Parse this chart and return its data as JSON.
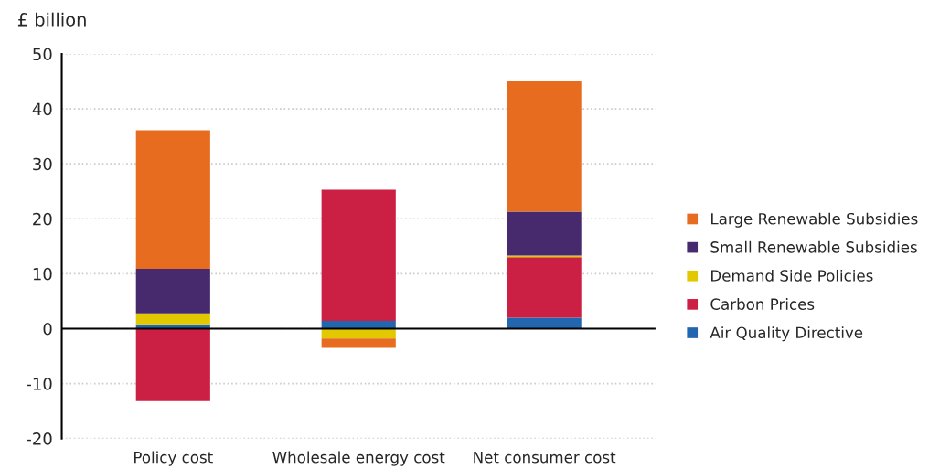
{
  "chart_data": {
    "type": "bar",
    "stacked": true,
    "ylabel": "£ billion",
    "categories": [
      "Policy cost",
      "Wholesale energy cost",
      "Net consumer cost"
    ],
    "series": [
      {
        "name": "Air Quality Directive",
        "color": "#2166ae",
        "values": [
          0.8,
          1.4,
          2.0
        ]
      },
      {
        "name": "Carbon Prices",
        "color": "#cc1f44",
        "values": [
          -13.2,
          23.9,
          11.0
        ]
      },
      {
        "name": "Demand Side Policies",
        "color": "#e2c800",
        "values": [
          2.0,
          -1.8,
          0.3
        ]
      },
      {
        "name": "Small Renewable Subsidies",
        "color": "#472a6e",
        "values": [
          8.1,
          null,
          8.0
        ]
      },
      {
        "name": "Large Renewable Subsidies",
        "color": "#e86c1f",
        "values": [
          25.2,
          -1.7,
          23.7
        ]
      }
    ],
    "ylim": [
      -20,
      50
    ],
    "yticks": [
      -20,
      -10,
      0,
      10,
      20,
      30,
      40,
      50
    ],
    "grid": "y",
    "legend": "right",
    "ref_lines": [
      {
        "axis": "y",
        "value": 0,
        "color": "#000000"
      }
    ]
  }
}
